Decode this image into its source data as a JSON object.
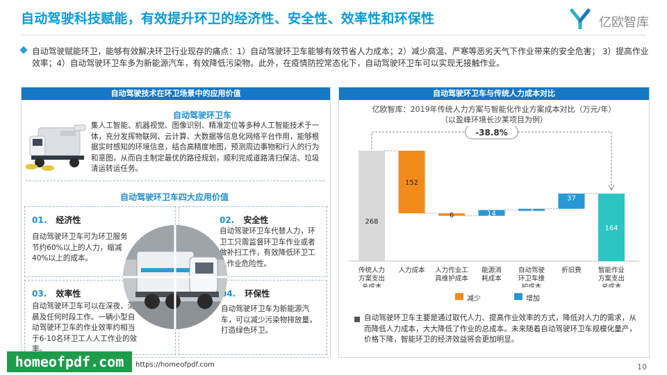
{
  "header": {
    "title": "自动驾驶科技赋能，有效提升环卫的经济性、安全性、效率性和环保性",
    "logo_text": "亿欧智库"
  },
  "intro": "自动驾驶赋能环卫，能够有效解决环卫行业现存的痛点：1）自动驾驶环卫车能够有效节省人力成本；2）减少高温、严寒等恶劣天气下作业带来的安全危害；  3）提高作业效率；4）自动驾驶环卫车多为新能源汽车，有效降低污染物。此外，在疫情防控常态化下，自动驾驶环卫车可以实现无接触作业。",
  "left": {
    "header": "自动驾驶技术在环卫场景中的应用价值",
    "vehicle_title": "自动驾驶环卫车",
    "vehicle_desc": "集人工智能、机器视觉、图像识别、精准定位等多种人工智能技术于一体，充分发挥物联网、云计算、大数据等信息化网络平台作用，能够根据实时感知的环境信息，结合高精度地图，预测周边事物和行人的行为和意图，从而自主制定最优的路径规划，顺利完成道路清扫保洁、垃圾清运转运任务。",
    "values_title": "自动驾驶环卫车四大应用价值",
    "values": [
      {
        "num": "01.",
        "name": "经济性",
        "text": "自动驾驶环卫车可为环卫服务节约60%以上的人力，缩减40%以上的成本。"
      },
      {
        "num": "02.",
        "name": "安全性",
        "text": "自动驾驶环卫车代替人力，环卫工只需监督环卫车作业或者做补扫工作，有效降低环卫工人作业危险性。"
      },
      {
        "num": "03.",
        "name": "效率性",
        "text": "自动驾驶环卫车可以在深夜、清晨及任何时段工作。一辆小型自动驾驶环卫车的作业效率约相当于6-10名环卫工人人工作业的效率。"
      },
      {
        "num": "04.",
        "name": "环保性",
        "text": "自动驾驶环卫车为新能源汽车，可以减少污染物排放量，打造绿色环卫。"
      }
    ]
  },
  "right": {
    "header": "自动驾驶环卫车与传统人力成本对比",
    "chart_title_line1": "亿欧智库：2019年传统人力方案与智能化作业方案成本对比（万元/年）",
    "chart_title_line2": "（以盈峰环境长沙某项目为例）",
    "delta_label": "-38.8%",
    "legend_decrease": "减少",
    "legend_increase": "增加",
    "note": "自动驾驶环卫车主要是通过取代人力、提高作业效率的方式，降低对人力的需求，从而降低人力成本，大大降低了作业的总成本。未来随着自动驾驶环卫车规模化量产，价格下降，智能环卫的经济效益将会更加明显。"
  },
  "chart_data": {
    "type": "bar",
    "subtype": "waterfall",
    "title": "亿欧智库：2019年传统人力方案与智能化作业方案成本对比（万元/年）",
    "subtitle": "（以盈峰环境长沙某项目为例）",
    "categories": [
      "传统人力方案支出总成本",
      "人力成本",
      "人力作业工具维护成本",
      "能源消耗成本",
      "自动驾驶环卫车维护成本",
      "折旧费",
      "智能作业方案支出总成本"
    ],
    "category_lines": [
      [
        "传统人力",
        "方案支出",
        "总成本"
      ],
      [
        "人力成本"
      ],
      [
        "人力作业工",
        "具维护成本"
      ],
      [
        "能源消",
        "耗成本"
      ],
      [
        "自动驾驶",
        "环卫车维",
        "护成本"
      ],
      [
        "折旧费"
      ],
      [
        "智能作业",
        "方案支出",
        "总成本"
      ]
    ],
    "values": [
      268,
      -152,
      -6,
      14,
      3,
      37,
      164
    ],
    "value_labels": [
      "268",
      "152",
      "6",
      "14",
      "3",
      "37",
      "164"
    ],
    "kinds": [
      "total",
      "decrease",
      "decrease",
      "increase",
      "increase",
      "increase",
      "total"
    ],
    "ylim": [
      0,
      268
    ],
    "annotation": "-38.8%",
    "colors": {
      "total_start": "#d9d9d9",
      "decrease": "#f28b1c",
      "increase": "#2897d6",
      "total_end": "#2ec4c4"
    }
  },
  "footer": {
    "watermark": "homeofpdf.com",
    "url": "https://homeofpdf.com",
    "page": "10"
  }
}
